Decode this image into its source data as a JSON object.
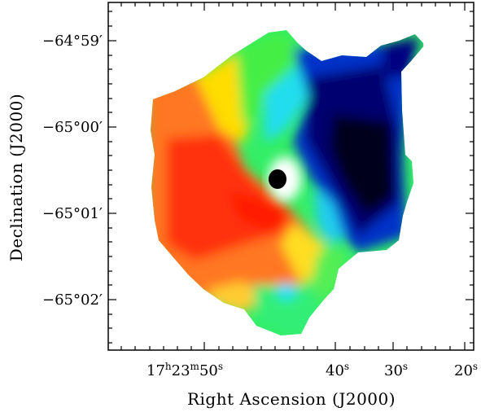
{
  "figure": {
    "x_axis_label": "Right Ascension (J2000)",
    "y_axis_label": "Declination (J2000)",
    "x_ticks": [
      {
        "value": "17h23m50s",
        "h": "17",
        "m": "23",
        "s": "50"
      },
      {
        "value": "40s",
        "s": "40"
      },
      {
        "value": "30s",
        "s": "30"
      },
      {
        "value": "20s",
        "s": "20"
      }
    ],
    "y_ticks": [
      "−64°59′",
      "−65°00′",
      "−65°01′",
      "−65°02′"
    ],
    "colormap": [
      "#0a0a14",
      "#000066",
      "#0033cc",
      "#22ccff",
      "#33ee66",
      "#ffee00",
      "#ff7722",
      "#ff2200"
    ],
    "beam_color": "#000000"
  }
}
